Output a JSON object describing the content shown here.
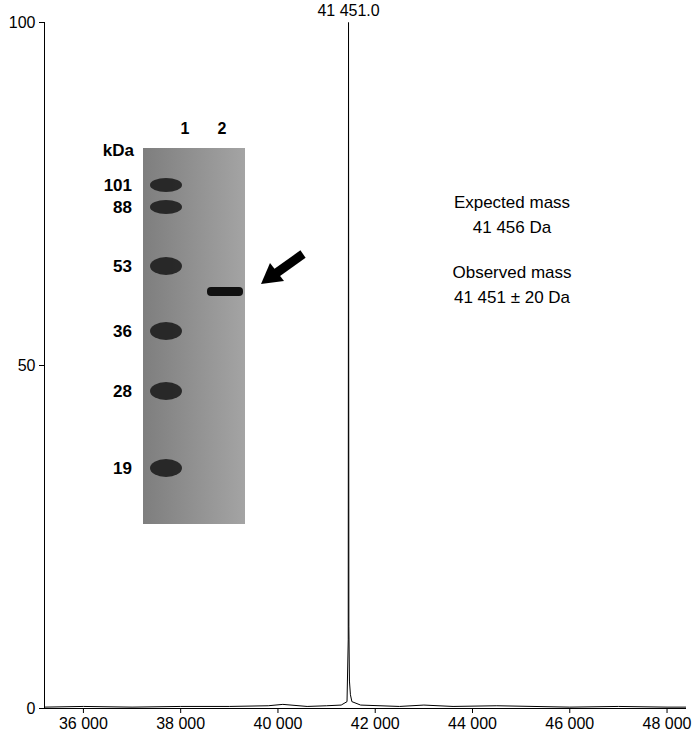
{
  "chart_data": {
    "type": "line",
    "x": [
      35200,
      36000,
      37000,
      38000,
      39000,
      39800,
      40100,
      40600,
      41000,
      41300,
      41420,
      41445,
      41451,
      41458,
      41470,
      41490,
      41520,
      41700,
      42500,
      43000,
      43600,
      44500,
      46000,
      47000,
      48000,
      48400
    ],
    "values": [
      0.2,
      0.3,
      0.2,
      0.3,
      0.3,
      0.4,
      0.6,
      0.3,
      0.4,
      0.5,
      1,
      10,
      100,
      12,
      4,
      2,
      1,
      0.5,
      0.3,
      0.5,
      0.3,
      0.4,
      0.2,
      0.3,
      0.2,
      0.2
    ],
    "color": "#000000",
    "xlim": [
      35200,
      48400
    ],
    "xticks": [
      {
        "value": 36000,
        "label": "36 000"
      },
      {
        "value": 38000,
        "label": "38 000"
      },
      {
        "value": 40000,
        "label": "40 000"
      },
      {
        "value": 42000,
        "label": "42 000"
      },
      {
        "value": 44000,
        "label": "44 000"
      },
      {
        "value": 46000,
        "label": "46 000"
      },
      {
        "value": 48000,
        "label": "48 000"
      }
    ],
    "ylim": [
      0,
      100
    ],
    "yticks": [
      0,
      50,
      100
    ],
    "peak_label": "41 451.0",
    "annotations": [
      "Expected mass",
      "41 456 Da",
      "Observed mass",
      "41 451 ± 20 Da"
    ],
    "inset": {
      "type": "gel",
      "unit": "kDa",
      "lanes": [
        "1",
        "2"
      ],
      "markers": [
        101,
        88,
        53,
        36,
        28,
        19
      ]
    }
  }
}
